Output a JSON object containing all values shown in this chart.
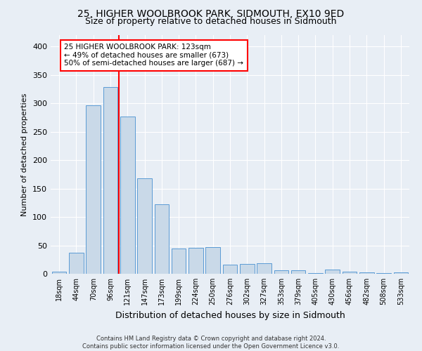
{
  "title1": "25, HIGHER WOOLBROOK PARK, SIDMOUTH, EX10 9ED",
  "title2": "Size of property relative to detached houses in Sidmouth",
  "xlabel": "Distribution of detached houses by size in Sidmouth",
  "ylabel": "Number of detached properties",
  "footer1": "Contains HM Land Registry data © Crown copyright and database right 2024.",
  "footer2": "Contains public sector information licensed under the Open Government Licence v3.0.",
  "annotation_line1": "25 HIGHER WOOLBROOK PARK: 123sqm",
  "annotation_line2": "← 49% of detached houses are smaller (673)",
  "annotation_line3": "50% of semi-detached houses are larger (687) →",
  "bar_labels": [
    "18sqm",
    "44sqm",
    "70sqm",
    "96sqm",
    "121sqm",
    "147sqm",
    "173sqm",
    "199sqm",
    "224sqm",
    "250sqm",
    "276sqm",
    "302sqm",
    "327sqm",
    "353sqm",
    "379sqm",
    "405sqm",
    "430sqm",
    "456sqm",
    "482sqm",
    "508sqm",
    "533sqm"
  ],
  "bar_values": [
    4,
    37,
    297,
    328,
    277,
    168,
    122,
    44,
    46,
    47,
    16,
    17,
    18,
    6,
    6,
    1,
    7,
    4,
    3,
    1,
    3
  ],
  "bar_color": "#c9d9e8",
  "bar_edge_color": "#5b9bd5",
  "marker_index": 4,
  "marker_color": "red",
  "ylim": [
    0,
    420
  ],
  "yticks": [
    0,
    50,
    100,
    150,
    200,
    250,
    300,
    350,
    400
  ],
  "background_color": "#e8eef5",
  "plot_bg_color": "#e8eef5",
  "grid_color": "white",
  "title1_fontsize": 10,
  "title2_fontsize": 9
}
